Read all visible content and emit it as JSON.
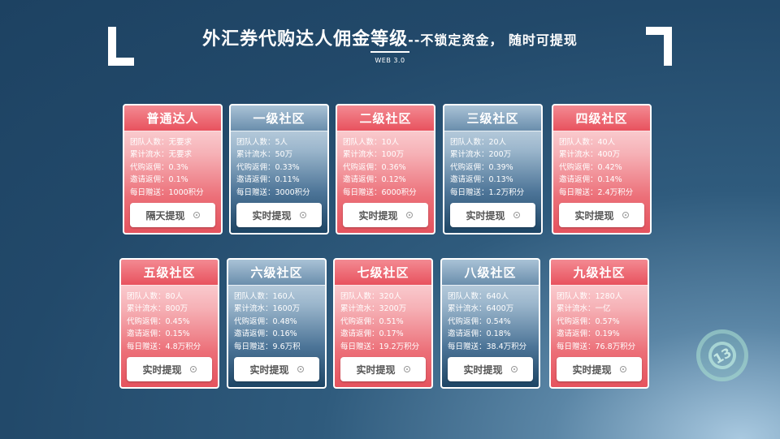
{
  "header": {
    "title_main": "外汇券代购达人佣金等级",
    "title_sub": "--不锁定资金， 随时可提现",
    "tag": "WEB 3.0"
  },
  "logo_text": "13",
  "cards": [
    {
      "name": "普通达人",
      "rows": [
        "团队人数：无要求",
        "累计流水：无要求",
        "代购返佣：0.3%",
        "邀请返佣：0.1%",
        "每日赠送：1000积分"
      ],
      "button": "隔天提现",
      "style": "red"
    },
    {
      "name": "一级社区",
      "rows": [
        "团队人数：5人",
        "累计流水：50万",
        "代购返佣：0.33%",
        "邀请返佣：0.11%",
        "每日赠送：3000积分"
      ],
      "button": "实时提现",
      "style": "blue"
    },
    {
      "name": "二级社区",
      "rows": [
        "团队人数：10人",
        "累计流水：100万",
        "代购返佣：0.36%",
        "邀请返佣：0.12%",
        "每日赠送：6000积分"
      ],
      "button": "实时提现",
      "style": "red"
    },
    {
      "name": "三级社区",
      "rows": [
        "团队人数：20人",
        "累计流水：200万",
        "代购返佣：0.39%",
        "邀请返佣：0.13%",
        "每日赠送：1.2万积分"
      ],
      "button": "实时提现",
      "style": "blue"
    },
    {
      "name": "四级社区",
      "rows": [
        "团队人数：40人",
        "累计流水：400万",
        "代购返佣：0.42%",
        "邀请返佣：0.14%",
        "每日赠送：2.4万积分"
      ],
      "button": "实时提现",
      "style": "red"
    },
    {
      "name": "五级社区",
      "rows": [
        "团队人数：80人",
        "累计流水：800万",
        "代购返佣：0.45%",
        "邀请返佣：0.15%",
        "每日赠送：4.8万积分"
      ],
      "button": "实时提现",
      "style": "red"
    },
    {
      "name": "六级社区",
      "rows": [
        "团队人数：160人",
        "累计流水：1600万",
        "代购返佣：0.48%",
        "邀请返佣：0.16%",
        "每日赠送：9.6万积"
      ],
      "button": "实时提现",
      "style": "blue"
    },
    {
      "name": "七级社区",
      "rows": [
        "团队人数：320人",
        "累计流水：3200万",
        "代购返佣：0.51%",
        "邀请返佣：0.17%",
        "每日赠送：19.2万积分"
      ],
      "button": "实时提现",
      "style": "red"
    },
    {
      "name": "八级社区",
      "rows": [
        "团队人数：640人",
        "累计流水：6400万",
        "代购返佣：0.54%",
        "邀请返佣：0.18%",
        "每日赠送：38.4万积分"
      ],
      "button": "实时提现",
      "style": "blue"
    },
    {
      "name": "九级社区",
      "rows": [
        "团队人数：1280人",
        "累计流水：一亿",
        "代购返佣：0.57%",
        "邀请返佣：0.19%",
        "每日赠送：76.8万积分"
      ],
      "button": "实时提现",
      "style": "red"
    }
  ]
}
